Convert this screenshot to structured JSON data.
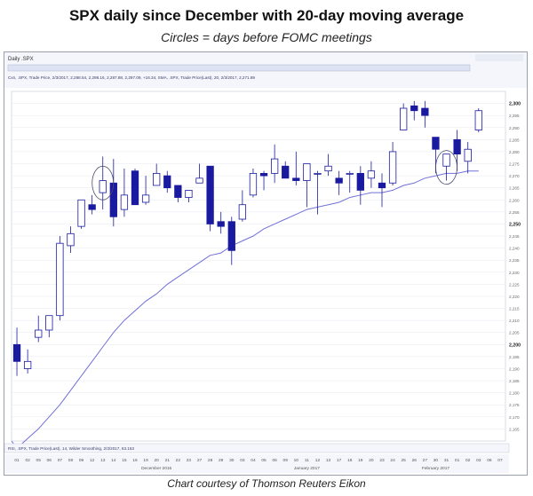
{
  "title": "SPX daily since December with 20-day moving average",
  "subtitle": "Circles = days before FOMC meetings",
  "footer": "Chart courtesy of Thomson Reuters Eikon",
  "panel_header": "Daily .SPX",
  "legend_line1": "Cxn, .SPX, Trade Price, 2/3/2017, 2,288.54, 2,298.16, 2,287.88, 2,297.09, +16.34, SMA, .SPX, Trade Price(Last), 20, 2/3/2017, 2,271.89",
  "rsi_label": "RSI, .SPX, Trade Price(Last), 14, Wilder Smoothing, 2/3/2017, 63.153",
  "month_labels": [
    {
      "label": "December 2016",
      "at": 13
    },
    {
      "label": "January 2017",
      "at": 27
    },
    {
      "label": "February 2017",
      "at": 39
    }
  ],
  "colors": {
    "up": "#ffffff",
    "down": "#1a1aa0",
    "ma": "#7070d8",
    "grid": "#e6e8f0",
    "circle": "#4a4a6a"
  },
  "chart_data": {
    "type": "candlestick",
    "x": [
      "01",
      "02",
      "05",
      "06",
      "07",
      "08",
      "09",
      "12",
      "13",
      "14",
      "15",
      "16",
      "19",
      "20",
      "21",
      "22",
      "23",
      "27",
      "28",
      "29",
      "30",
      "03",
      "04",
      "05",
      "06",
      "09",
      "10",
      "11",
      "12",
      "13",
      "17",
      "18",
      "19",
      "20",
      "23",
      "24",
      "25",
      "26",
      "27",
      "30",
      "31",
      "01",
      "02",
      "03"
    ],
    "ohlc": [
      [
        2200,
        2207,
        2187,
        2193
      ],
      [
        2190,
        2198,
        2188,
        2193
      ],
      [
        2203,
        2212,
        2201,
        2206
      ],
      [
        2206,
        2212,
        2203,
        2212
      ],
      [
        2212,
        2245,
        2210,
        2242
      ],
      [
        2241,
        2249,
        2238,
        2246
      ],
      [
        2249,
        2260,
        2248,
        2260
      ],
      [
        2258,
        2262,
        2254,
        2256
      ],
      [
        2263,
        2278,
        2256,
        2268
      ],
      [
        2267,
        2277,
        2249,
        2253
      ],
      [
        2256,
        2273,
        2253,
        2262
      ],
      [
        2272,
        2273,
        2259,
        2258
      ],
      [
        2259,
        2270,
        2258,
        2262
      ],
      [
        2266,
        2275,
        2266,
        2271
      ],
      [
        2270,
        2272,
        2263,
        2265
      ],
      [
        2266,
        2266,
        2259,
        2261
      ],
      [
        2261,
        2264,
        2259,
        2264
      ],
      [
        2267,
        2275,
        2267,
        2269
      ],
      [
        2274,
        2274,
        2247,
        2250
      ],
      [
        2251,
        2255,
        2246,
        2249
      ],
      [
        2251,
        2253,
        2233,
        2239
      ],
      [
        2252,
        2264,
        2251,
        2258
      ],
      [
        2262,
        2273,
        2261,
        2271
      ],
      [
        2271,
        2272,
        2264,
        2270
      ],
      [
        2271,
        2283,
        2267,
        2277
      ],
      [
        2274,
        2276,
        2269,
        2269
      ],
      [
        2269,
        2280,
        2266,
        2268
      ],
      [
        2268,
        2275,
        2257,
        2275
      ],
      [
        2271,
        2272,
        2254,
        2271
      ],
      [
        2272,
        2279,
        2270,
        2274
      ],
      [
        2269,
        2272,
        2262,
        2267
      ],
      [
        2271,
        2272,
        2263,
        2271
      ],
      [
        2271,
        2274,
        2258,
        2264
      ],
      [
        2269,
        2276,
        2265,
        2272
      ],
      [
        2267,
        2271,
        2257,
        2265
      ],
      [
        2267,
        2284,
        2266,
        2280
      ],
      [
        2289,
        2300,
        2289,
        2298
      ],
      [
        2299,
        2301,
        2293,
        2297
      ],
      [
        2298,
        2301,
        2290,
        2295
      ],
      [
        2286,
        2286,
        2271,
        2281
      ],
      [
        2274,
        2279,
        2268,
        2279
      ],
      [
        2285,
        2289,
        2272,
        2279
      ],
      [
        2276,
        2284,
        2271,
        2281
      ],
      [
        2289,
        2298,
        2288,
        2297
      ]
    ],
    "ma20": [
      2157,
      2161,
      2165,
      2170,
      2175,
      2181,
      2187,
      2193,
      2199,
      2205,
      2210,
      2214,
      2218,
      2221,
      2225,
      2228,
      2231,
      2234,
      2237,
      2238,
      2241,
      2243,
      2245,
      2248,
      2250,
      2252,
      2254,
      2256,
      2257,
      2258,
      2259,
      2261,
      2262,
      2263,
      2263,
      2264,
      2266,
      2267,
      2269,
      2270,
      2271,
      2271,
      2272,
      2272
    ],
    "fomc_circles": [
      {
        "x": "13"
      },
      {
        "x": "31"
      }
    ],
    "ylim": [
      2160,
      2305
    ],
    "yticks": [
      2165,
      2170,
      2175,
      2180,
      2185,
      2190,
      2195,
      2200,
      2205,
      2210,
      2215,
      2220,
      2225,
      2230,
      2235,
      2240,
      2245,
      2250,
      2255,
      2260,
      2265,
      2270,
      2275,
      2280,
      2285,
      2290,
      2295,
      2300
    ],
    "ytick_bold": [
      2200,
      2250,
      2300
    ],
    "ytick_labels": [
      "2,165",
      "2,170",
      "2,175",
      "2,180",
      "2,185",
      "2,190",
      "2,195",
      "2,200",
      "2,205",
      "2,210",
      "2,215",
      "2,220",
      "2,225",
      "2,230",
      "2,235",
      "2,240",
      "2,245",
      "2,250",
      "2,255",
      "2,260",
      "2,265",
      "2,270",
      "2,275",
      "2,280",
      "2,285",
      "2,290",
      "2,295",
      "2,300"
    ],
    "extra_x": [
      "06",
      "07"
    ],
    "grid": true
  }
}
